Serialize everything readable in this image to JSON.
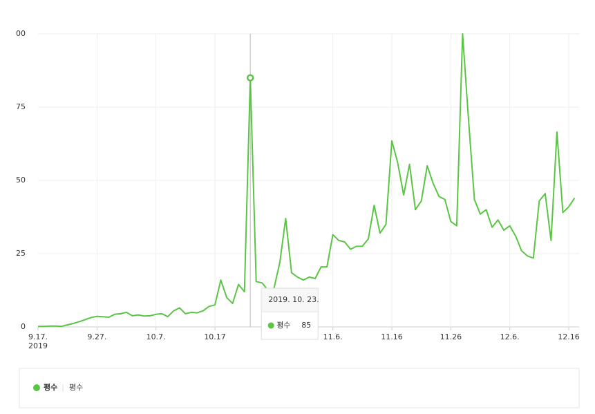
{
  "chart_data": {
    "type": "line",
    "x": [
      "2019-09-17",
      "2019-09-18",
      "2019-09-19",
      "2019-09-20",
      "2019-09-21",
      "2019-09-22",
      "2019-09-23",
      "2019-09-24",
      "2019-09-25",
      "2019-09-26",
      "2019-09-27",
      "2019-09-28",
      "2019-09-29",
      "2019-09-30",
      "2019-10-01",
      "2019-10-02",
      "2019-10-03",
      "2019-10-04",
      "2019-10-05",
      "2019-10-06",
      "2019-10-07",
      "2019-10-08",
      "2019-10-09",
      "2019-10-10",
      "2019-10-11",
      "2019-10-12",
      "2019-10-13",
      "2019-10-14",
      "2019-10-15",
      "2019-10-16",
      "2019-10-17",
      "2019-10-18",
      "2019-10-19",
      "2019-10-20",
      "2019-10-21",
      "2019-10-22",
      "2019-10-23",
      "2019-10-24",
      "2019-10-25",
      "2019-10-26",
      "2019-10-27",
      "2019-10-28",
      "2019-10-29",
      "2019-10-30",
      "2019-10-31",
      "2019-11-01",
      "2019-11-02",
      "2019-11-03",
      "2019-11-04",
      "2019-11-05",
      "2019-11-06",
      "2019-11-07",
      "2019-11-08",
      "2019-11-09",
      "2019-11-10",
      "2019-11-11",
      "2019-11-12",
      "2019-11-13",
      "2019-11-14",
      "2019-11-15",
      "2019-11-16",
      "2019-11-17",
      "2019-11-18",
      "2019-11-19",
      "2019-11-20",
      "2019-11-21",
      "2019-11-22",
      "2019-11-23",
      "2019-11-24",
      "2019-11-25",
      "2019-11-26",
      "2019-11-27",
      "2019-11-28",
      "2019-11-29",
      "2019-11-30",
      "2019-12-01",
      "2019-12-02",
      "2019-12-03",
      "2019-12-04",
      "2019-12-05",
      "2019-12-06",
      "2019-12-07",
      "2019-12-08",
      "2019-12-09",
      "2019-12-10",
      "2019-12-11",
      "2019-12-12",
      "2019-12-13",
      "2019-12-14",
      "2019-12-15",
      "2019-12-16",
      "2019-12-17"
    ],
    "series": [
      {
        "name": "평수",
        "color": "#5ac544",
        "values": [
          0.2,
          0.2,
          0.3,
          0.3,
          0.2,
          0.7,
          1.2,
          1.8,
          2.5,
          3.2,
          3.6,
          3.5,
          3.3,
          4.3,
          4.5,
          5,
          3.8,
          4.1,
          3.7,
          3.8,
          4.3,
          4.5,
          3.5,
          5.5,
          6.5,
          4.5,
          5,
          4.8,
          5.5,
          7,
          7.5,
          16,
          10,
          8,
          14.5,
          12,
          85,
          15.5,
          15,
          12.5,
          13,
          22,
          37,
          18.5,
          17,
          16,
          17,
          16.5,
          20.5,
          20.5,
          31.5,
          29.5,
          29,
          26.5,
          27.5,
          27.5,
          30,
          41.5,
          32,
          35,
          63.5,
          56,
          45,
          55.5,
          40,
          43,
          55,
          49,
          44.5,
          43.5,
          36,
          34.5,
          100,
          71,
          43.5,
          38.5,
          40,
          34,
          36.5,
          33,
          34.5,
          31,
          26,
          24.2,
          23.5,
          43,
          45.5,
          29.5,
          66.5,
          39,
          41,
          44
        ]
      }
    ],
    "ylim": [
      0,
      100
    ],
    "yticks": [
      0,
      25,
      50,
      75,
      {
        "value": 100,
        "label": "00"
      }
    ],
    "xticks": [
      {
        "value": "2019-09-17",
        "label": "9.17."
      },
      {
        "value": "2019-09-27",
        "label": "9.27."
      },
      {
        "value": "2019-10-07",
        "label": "10.7."
      },
      {
        "value": "2019-10-17",
        "label": "10.17"
      },
      {
        "value": "2019-11-06",
        "label": "11.6."
      },
      {
        "value": "2019-11-16",
        "label": "11.16"
      },
      {
        "value": "2019-11-26",
        "label": "11.26"
      },
      {
        "value": "2019-12-06",
        "label": "12.6."
      },
      {
        "value": "2019-12-16",
        "label": "12.16"
      }
    ],
    "year": "2019",
    "grid": true,
    "tooltip": {
      "date": "2019. 10. 23.",
      "name": "평수",
      "value": 85
    }
  }
}
